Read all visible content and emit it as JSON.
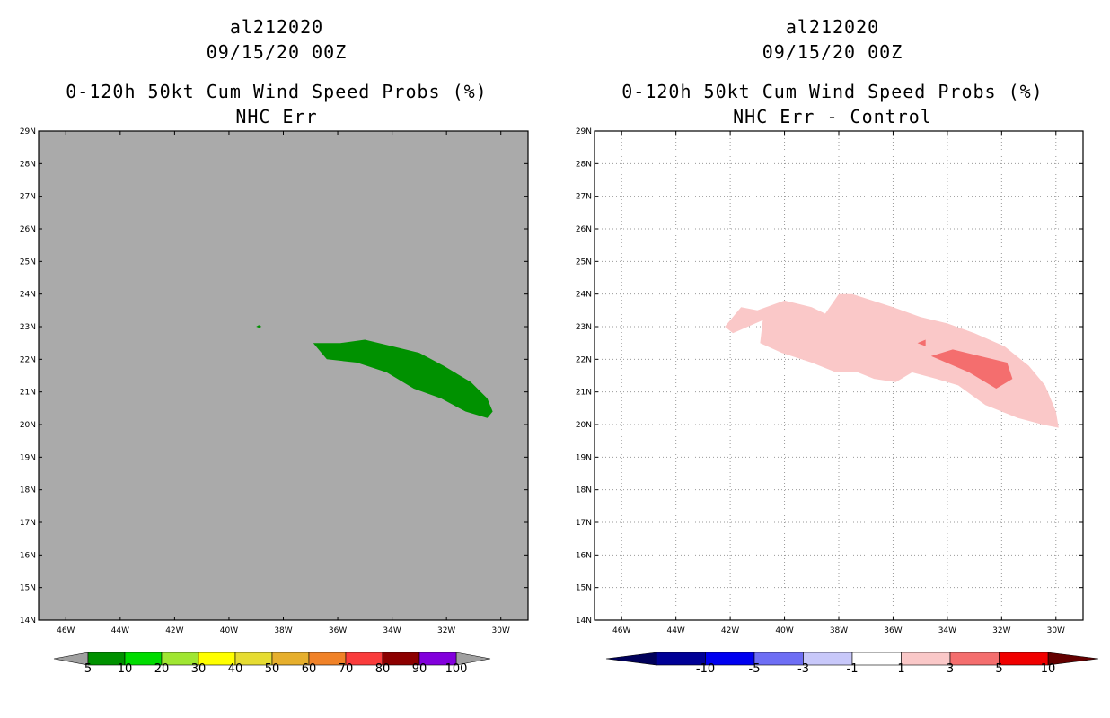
{
  "chart_data": [
    {
      "type": "map",
      "title": [
        "al212020",
        "09/15/20 00Z",
        "0-120h 50kt Cum Wind Speed Probs (%)",
        "NHC Err"
      ],
      "lon_range": [
        -47,
        -29
      ],
      "lat_range": [
        14,
        29
      ],
      "lon_ticks": [
        "46W",
        "44W",
        "42W",
        "40W",
        "38W",
        "36W",
        "34W",
        "32W",
        "30W"
      ],
      "lat_ticks": [
        "14N",
        "15N",
        "16N",
        "17N",
        "18N",
        "19N",
        "20N",
        "21N",
        "22N",
        "23N",
        "24N",
        "25N",
        "26N",
        "27N",
        "28N",
        "29N"
      ],
      "background_color": "#aaaaaa",
      "grid": false,
      "regions": [
        {
          "label": "5-10%",
          "color": "#009100",
          "points": [
            [
              -36.9,
              22.5
            ],
            [
              -35.9,
              22.5
            ],
            [
              -35.0,
              22.6
            ],
            [
              -34.0,
              22.4
            ],
            [
              -33.0,
              22.2
            ],
            [
              -32.1,
              21.8
            ],
            [
              -31.1,
              21.3
            ],
            [
              -30.5,
              20.8
            ],
            [
              -30.3,
              20.4
            ],
            [
              -30.5,
              20.2
            ],
            [
              -31.3,
              20.4
            ],
            [
              -32.2,
              20.8
            ],
            [
              -33.2,
              21.1
            ],
            [
              -34.2,
              21.6
            ],
            [
              -35.3,
              21.9
            ],
            [
              -36.4,
              22.0
            ],
            [
              -36.9,
              22.5
            ]
          ]
        },
        {
          "label": "speck",
          "color": "#009100",
          "points": [
            [
              -39.0,
              23.0
            ],
            [
              -38.9,
              23.05
            ],
            [
              -38.8,
              23.0
            ],
            [
              -38.9,
              22.97
            ],
            [
              -39.0,
              23.0
            ]
          ]
        }
      ],
      "colorbar": {
        "labels": [
          "5",
          "10",
          "20",
          "30",
          "40",
          "50",
          "60",
          "70",
          "80",
          "90",
          "100"
        ],
        "colors": [
          "#009100",
          "#00dc00",
          "#a0e632",
          "#ffff00",
          "#e6dc32",
          "#e6af2d",
          "#f08228",
          "#fa3c3c",
          "#8c0000",
          "#8200dc"
        ],
        "end_color": "#a0a0a0"
      }
    },
    {
      "type": "map",
      "title": [
        "al212020",
        "09/15/20 00Z",
        "0-120h 50kt Cum Wind Speed Probs (%)",
        "NHC Err - Control"
      ],
      "lon_range": [
        -47,
        -29
      ],
      "lat_range": [
        14,
        29
      ],
      "lon_ticks": [
        "46W",
        "44W",
        "42W",
        "40W",
        "38W",
        "36W",
        "34W",
        "32W",
        "30W"
      ],
      "lat_ticks": [
        "14N",
        "15N",
        "16N",
        "17N",
        "18N",
        "19N",
        "20N",
        "21N",
        "22N",
        "23N",
        "24N",
        "25N",
        "26N",
        "27N",
        "28N",
        "29N"
      ],
      "background_color": "#ffffff",
      "grid": true,
      "regions": [
        {
          "label": "1-3",
          "color": "#fac8c8",
          "points": [
            [
              -42.2,
              23.0
            ],
            [
              -41.6,
              23.6
            ],
            [
              -41.0,
              23.5
            ],
            [
              -40.0,
              23.8
            ],
            [
              -39.0,
              23.6
            ],
            [
              -38.5,
              23.4
            ],
            [
              -38.0,
              24.0
            ],
            [
              -37.5,
              24.0
            ],
            [
              -36.0,
              23.6
            ],
            [
              -35.0,
              23.3
            ],
            [
              -34.0,
              23.1
            ],
            [
              -33.0,
              22.8
            ],
            [
              -31.9,
              22.4
            ],
            [
              -31.0,
              21.8
            ],
            [
              -30.4,
              21.2
            ],
            [
              -30.0,
              20.4
            ],
            [
              -29.9,
              19.9
            ],
            [
              -30.5,
              20.0
            ],
            [
              -31.4,
              20.2
            ],
            [
              -32.6,
              20.6
            ],
            [
              -33.6,
              21.2
            ],
            [
              -34.4,
              21.4
            ],
            [
              -35.3,
              21.6
            ],
            [
              -35.9,
              21.3
            ],
            [
              -36.7,
              21.4
            ],
            [
              -37.3,
              21.6
            ],
            [
              -38.1,
              21.6
            ],
            [
              -39.0,
              21.9
            ],
            [
              -40.1,
              22.2
            ],
            [
              -40.9,
              22.5
            ],
            [
              -40.8,
              23.2
            ],
            [
              -41.9,
              22.8
            ],
            [
              -42.2,
              23.0
            ]
          ]
        },
        {
          "label": "3-5",
          "color": "#f46e6e",
          "points": [
            [
              -34.6,
              22.1
            ],
            [
              -33.8,
              22.3
            ],
            [
              -32.8,
              22.1
            ],
            [
              -31.8,
              21.9
            ],
            [
              -31.6,
              21.4
            ],
            [
              -32.2,
              21.1
            ],
            [
              -33.2,
              21.6
            ],
            [
              -34.6,
              22.1
            ]
          ]
        },
        {
          "label": "3-5 speck",
          "color": "#f46e6e",
          "points": [
            [
              -35.1,
              22.5
            ],
            [
              -34.8,
              22.6
            ],
            [
              -34.8,
              22.4
            ],
            [
              -35.1,
              22.5
            ]
          ]
        }
      ],
      "colorbar": {
        "labels": [
          "-10",
          "-5",
          "-3",
          "-1",
          "1",
          "3",
          "5",
          "10"
        ],
        "colors": [
          "#000096",
          "#0000f0",
          "#6e6ef4",
          "#c8c8fa",
          "#ffffff",
          "#fac8c8",
          "#f46e6e",
          "#f00000"
        ],
        "left_end_color": "#00005a",
        "right_end_color": "#640000"
      }
    }
  ]
}
